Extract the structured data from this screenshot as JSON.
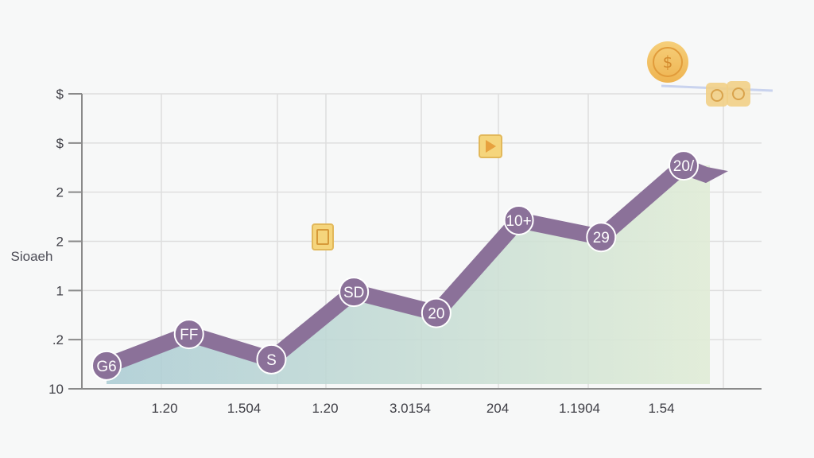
{
  "chart_data": {
    "type": "area",
    "title": "",
    "xlabel": "",
    "ylabel": "Sioaeh",
    "y_tick_labels": [
      "10",
      ".2",
      "1",
      "2",
      "2",
      "$",
      "$"
    ],
    "x_tick_labels": [
      "1.20",
      "1.504",
      "1.20",
      "3.0154",
      "204",
      "1.1904",
      "1.54"
    ],
    "grid": true,
    "legend": "none",
    "ylim": [
      0,
      7
    ],
    "series": [
      {
        "values": [
          0.55,
          1.3,
          0.7,
          2.3,
          1.8,
          4.0,
          3.6,
          5.3
        ],
        "point_labels": [
          "G6",
          "FF",
          "S",
          "SD",
          "20",
          "10+",
          "29",
          "20/"
        ]
      }
    ],
    "colors": {
      "line": "#8b7199",
      "marker": "#8b7199",
      "fill_start": "#a9cbd3",
      "fill_end": "#e0ecd6",
      "grid": "#dedede",
      "coin": "#f2c46b",
      "tag": "#f5d57c",
      "bubble": "#f1cf86",
      "bubble_outline": "#d7dbee"
    },
    "decorations": [
      "dollar-coin-icon",
      "price-tag-icon",
      "price-tag-icon",
      "coin-stack-icon"
    ]
  }
}
